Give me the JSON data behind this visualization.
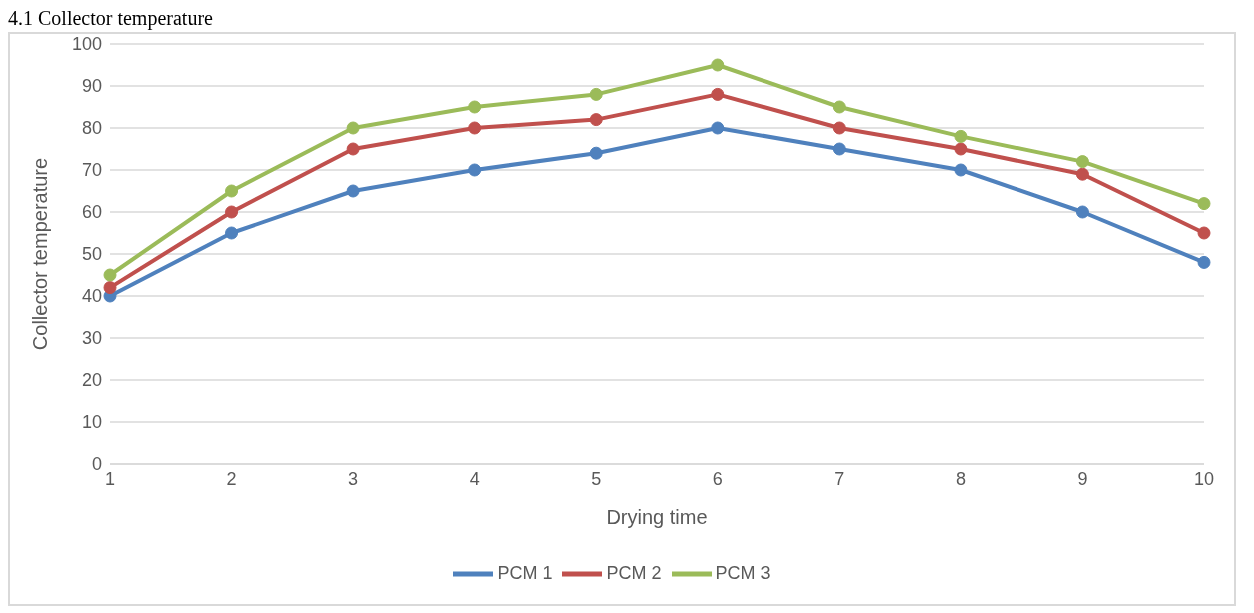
{
  "chart_data": {
    "type": "line",
    "title": "4.1 Collector temperature",
    "xlabel": "Drying time",
    "ylabel": "Collector temperature",
    "categories": [
      "1",
      "2",
      "3",
      "4",
      "5",
      "6",
      "7",
      "8",
      "9",
      "10"
    ],
    "series": [
      {
        "name": "PCM 1",
        "color": "#4f81bd",
        "values": [
          40,
          55,
          65,
          70,
          74,
          80,
          75,
          70,
          60,
          48
        ]
      },
      {
        "name": "PCM 2",
        "color": "#c0504d",
        "values": [
          42,
          60,
          75,
          80,
          82,
          88,
          80,
          75,
          69,
          55
        ]
      },
      {
        "name": "PCM 3",
        "color": "#9bbb59",
        "values": [
          45,
          65,
          80,
          85,
          88,
          95,
          85,
          78,
          72,
          62
        ]
      }
    ],
    "ylim": [
      0,
      100
    ],
    "yticks": [
      0,
      10,
      20,
      30,
      40,
      50,
      60,
      70,
      80,
      90,
      100
    ],
    "grid": "y",
    "legend": "bottom",
    "marker": "circle",
    "line_style": "solid"
  }
}
